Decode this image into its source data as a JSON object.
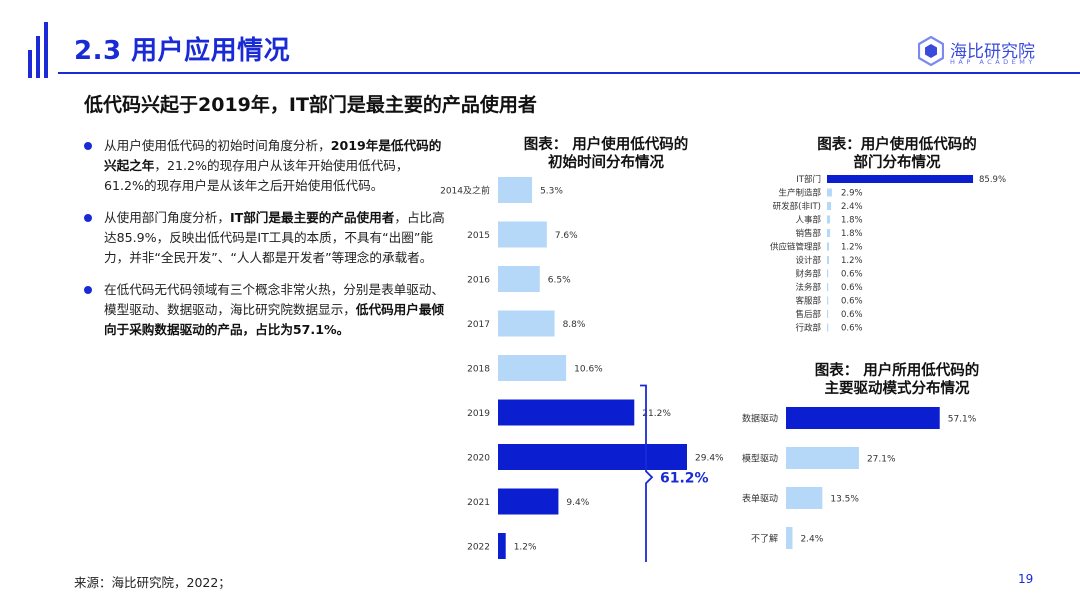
{
  "header": {
    "title": "2.3 用户应用情况",
    "subtitle": "低代码兴起于2019年，IT部门是最主要的产品使用者",
    "logo_name": "海比研究院",
    "logo_sub": "HAP ACADEMY"
  },
  "bullets": [
    {
      "parts": [
        {
          "t": "从用户使用低代码的初始时间角度分析，",
          "b": false
        },
        {
          "t": "2019年是低代码的兴起之年",
          "b": true
        },
        {
          "t": "，21.2%的现存用户从该年开始使用低代码，61.2%的现存用户是从该年之后开始使用低代码。",
          "b": false
        }
      ]
    },
    {
      "parts": [
        {
          "t": "从使用部门角度分析，",
          "b": false
        },
        {
          "t": "IT部门是最主要的产品使用者",
          "b": true
        },
        {
          "t": "，占比高达85.9%，反映出低代码是IT工具的本质，不具有“出圈”能力，并非“全民开发”、“人人都是开发者”等理念的承载者。",
          "b": false
        }
      ]
    },
    {
      "parts": [
        {
          "t": "在低代码无代码领域有三个概念非常火热，分别是表单驱动、模型驱动、数据驱动，海比研究院数据显示，",
          "b": false
        },
        {
          "t": "低代码用户最倾向于采购数据驱动的产品，占比为57.1%。",
          "b": true
        }
      ]
    }
  ],
  "chart_data": [
    {
      "type": "bar",
      "orientation": "horizontal",
      "title": "图表： 用户使用低代码的初始时间分布情况",
      "title_lines": [
        "图表： 用户使用低代码的",
        "初始时间分布情况"
      ],
      "categories": [
        "2014及之前",
        "2015",
        "2016",
        "2017",
        "2018",
        "2019",
        "2020",
        "2021",
        "2022"
      ],
      "values": [
        5.3,
        7.6,
        6.5,
        8.8,
        10.6,
        21.2,
        29.4,
        9.4,
        1.2
      ],
      "value_labels": [
        "5.3%",
        "7.6%",
        "6.5%",
        "8.8%",
        "10.6%",
        "21.2%",
        "29.4%",
        "9.4%",
        "1.2%"
      ],
      "highlight": [
        "2019",
        "2020",
        "2021",
        "2022"
      ],
      "bracket_label": "61.2%",
      "xlim": [
        0,
        35
      ]
    },
    {
      "type": "bar",
      "orientation": "horizontal",
      "title": "图表：用户使用低代码的部门分布情况",
      "title_lines": [
        "图表：用户使用低代码的",
        "部门分布情况"
      ],
      "categories": [
        "IT部门",
        "生产制造部",
        "研发部(非IT)",
        "人事部",
        "销售部",
        "供应链管理部",
        "设计部",
        "财务部",
        "法务部",
        "客服部",
        "售后部",
        "行政部"
      ],
      "values": [
        85.9,
        2.9,
        2.4,
        1.8,
        1.8,
        1.2,
        1.2,
        0.6,
        0.6,
        0.6,
        0.6,
        0.6
      ],
      "value_labels": [
        "85.9%",
        "2.9%",
        "2.4%",
        "1.8%",
        "1.8%",
        "1.2%",
        "1.2%",
        "0.6%",
        "0.6%",
        "0.6%",
        "0.6%",
        "0.6%"
      ],
      "xlim": [
        0,
        100
      ]
    },
    {
      "type": "bar",
      "orientation": "horizontal",
      "title": "图表： 用户所用低代码的主要驱动模式分布情况",
      "title_lines": [
        "图表： 用户所用低代码的",
        "主要驱动模式分布情况"
      ],
      "categories": [
        "数据驱动",
        "模型驱动",
        "表单驱动",
        "不了解"
      ],
      "values": [
        57.1,
        27.1,
        13.5,
        2.4
      ],
      "value_labels": [
        "57.1%",
        "27.1%",
        "13.5%",
        "2.4%"
      ],
      "highlight": [
        "数据驱动"
      ],
      "xlim": [
        0,
        65
      ]
    }
  ],
  "colors": {
    "accent": "#1a2bd6",
    "bar_dark": "#0c1fd0",
    "bar_light": "#b5d8f8",
    "text": "#222222"
  },
  "footer": {
    "source": "来源：海比研究院，2022；",
    "page": "19"
  }
}
